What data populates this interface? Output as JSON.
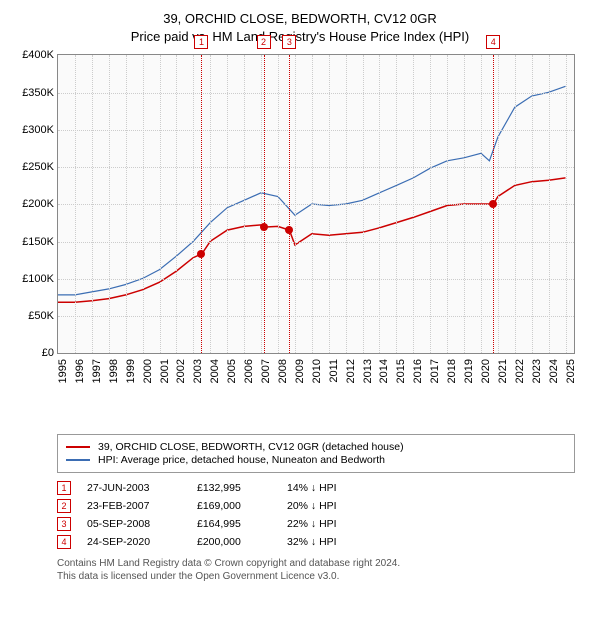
{
  "title": {
    "line1": "39, ORCHID CLOSE, BEDWORTH, CV12 0GR",
    "line2": "Price paid vs. HM Land Registry's House Price Index (HPI)"
  },
  "chart": {
    "type": "line",
    "background_color": "#fafafa",
    "border_color": "#888888",
    "grid_color": "#cccccc",
    "x": {
      "min": 1995,
      "max": 2025.5,
      "ticks": [
        1995,
        1996,
        1997,
        1998,
        1999,
        2000,
        2001,
        2002,
        2003,
        2004,
        2005,
        2006,
        2007,
        2008,
        2009,
        2010,
        2011,
        2012,
        2013,
        2014,
        2015,
        2016,
        2017,
        2018,
        2019,
        2020,
        2021,
        2022,
        2023,
        2024,
        2025
      ]
    },
    "y": {
      "min": 0,
      "max": 400000,
      "prefix": "£",
      "ticks": [
        0,
        50000,
        100000,
        150000,
        200000,
        250000,
        300000,
        350000,
        400000
      ]
    },
    "series": [
      {
        "name": "39, ORCHID CLOSE, BEDWORTH, CV12 0GR (detached house)",
        "color": "#cc0000",
        "width": 1.5,
        "points": [
          [
            1995,
            68000
          ],
          [
            1996,
            68000
          ],
          [
            1997,
            70000
          ],
          [
            1998,
            73000
          ],
          [
            1999,
            78000
          ],
          [
            2000,
            85000
          ],
          [
            2001,
            95000
          ],
          [
            2002,
            110000
          ],
          [
            2003,
            128000
          ],
          [
            2003.5,
            133000
          ],
          [
            2004,
            150000
          ],
          [
            2005,
            165000
          ],
          [
            2006,
            170000
          ],
          [
            2007,
            172000
          ],
          [
            2007.15,
            169000
          ],
          [
            2008,
            170000
          ],
          [
            2008.68,
            165000
          ],
          [
            2009,
            145000
          ],
          [
            2010,
            160000
          ],
          [
            2011,
            158000
          ],
          [
            2012,
            160000
          ],
          [
            2013,
            162000
          ],
          [
            2014,
            168000
          ],
          [
            2015,
            175000
          ],
          [
            2016,
            182000
          ],
          [
            2017,
            190000
          ],
          [
            2018,
            198000
          ],
          [
            2019,
            200000
          ],
          [
            2020,
            200000
          ],
          [
            2020.73,
            200000
          ],
          [
            2021,
            210000
          ],
          [
            2022,
            225000
          ],
          [
            2023,
            230000
          ],
          [
            2024,
            232000
          ],
          [
            2025,
            235000
          ]
        ]
      },
      {
        "name": "HPI: Average price, detached house, Nuneaton and Bedworth",
        "color": "#3b6db3",
        "width": 1.2,
        "points": [
          [
            1995,
            78000
          ],
          [
            1996,
            78000
          ],
          [
            1997,
            82000
          ],
          [
            1998,
            86000
          ],
          [
            1999,
            92000
          ],
          [
            2000,
            100000
          ],
          [
            2001,
            112000
          ],
          [
            2002,
            130000
          ],
          [
            2003,
            150000
          ],
          [
            2004,
            175000
          ],
          [
            2005,
            195000
          ],
          [
            2006,
            205000
          ],
          [
            2007,
            215000
          ],
          [
            2008,
            210000
          ],
          [
            2009,
            185000
          ],
          [
            2010,
            200000
          ],
          [
            2011,
            198000
          ],
          [
            2012,
            200000
          ],
          [
            2013,
            205000
          ],
          [
            2014,
            215000
          ],
          [
            2015,
            225000
          ],
          [
            2016,
            235000
          ],
          [
            2017,
            248000
          ],
          [
            2018,
            258000
          ],
          [
            2019,
            262000
          ],
          [
            2020,
            268000
          ],
          [
            2020.5,
            258000
          ],
          [
            2021,
            290000
          ],
          [
            2022,
            330000
          ],
          [
            2023,
            345000
          ],
          [
            2024,
            350000
          ],
          [
            2025,
            358000
          ]
        ]
      }
    ],
    "sale_events": [
      {
        "n": "1",
        "x": 2003.48,
        "date": "27-JUN-2003",
        "price_val": 132995,
        "price": "£132,995",
        "diff": "14% ↓ HPI",
        "color": "#cc0000"
      },
      {
        "n": "2",
        "x": 2007.15,
        "date": "23-FEB-2007",
        "price_val": 169000,
        "price": "£169,000",
        "diff": "20% ↓ HPI",
        "color": "#cc0000"
      },
      {
        "n": "3",
        "x": 2008.68,
        "date": "05-SEP-2008",
        "price_val": 164995,
        "price": "£164,995",
        "diff": "22% ↓ HPI",
        "color": "#cc0000"
      },
      {
        "n": "4",
        "x": 2020.73,
        "date": "24-SEP-2020",
        "price_val": 200000,
        "price": "£200,000",
        "diff": "32% ↓ HPI",
        "color": "#cc0000"
      }
    ]
  },
  "footer": {
    "line1": "Contains HM Land Registry data © Crown copyright and database right 2024.",
    "line2": "This data is licensed under the Open Government Licence v3.0."
  }
}
